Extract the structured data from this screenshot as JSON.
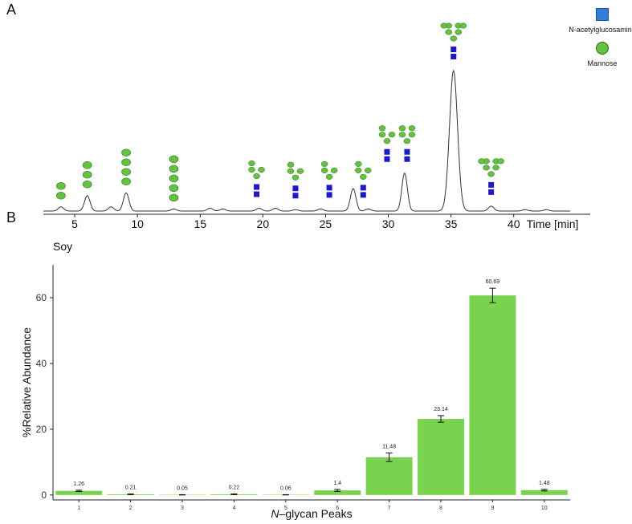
{
  "panels": {
    "a": "A",
    "b": "B"
  },
  "legend": {
    "items": [
      {
        "label": "N-acetylglucosamine",
        "shape": "square",
        "color": "#2f7fd8"
      },
      {
        "label": "Mannose",
        "shape": "circle",
        "color": "#63c33f"
      }
    ]
  },
  "chart_data": [
    {
      "type": "line",
      "xlabel": "Time [min]",
      "xticks": [
        5,
        10,
        15,
        20,
        25,
        30,
        35,
        40
      ],
      "xlim": [
        2.5,
        44.5
      ],
      "peaks": [
        {
          "time": 3.9,
          "height": 0.03
        },
        {
          "time": 6.0,
          "height": 0.11
        },
        {
          "time": 7.9,
          "height": 0.03
        },
        {
          "time": 9.1,
          "height": 0.13
        },
        {
          "time": 12.9,
          "height": 0.015
        },
        {
          "time": 15.8,
          "height": 0.02
        },
        {
          "time": 16.8,
          "height": 0.015
        },
        {
          "time": 19.7,
          "height": 0.02
        },
        {
          "time": 21.0,
          "height": 0.02
        },
        {
          "time": 22.6,
          "height": 0.01
        },
        {
          "time": 24.6,
          "height": 0.015
        },
        {
          "time": 27.2,
          "height": 0.16
        },
        {
          "time": 28.4,
          "height": 0.015
        },
        {
          "time": 31.3,
          "height": 0.27
        },
        {
          "time": 35.2,
          "height": 1.0
        },
        {
          "time": 38.2,
          "height": 0.035
        },
        {
          "time": 40.9,
          "height": 0.01
        },
        {
          "time": 42.6,
          "height": 0.01
        }
      ],
      "glycans": [
        {
          "time": 3.9,
          "mannose_chain": 2,
          "glcnac": 0
        },
        {
          "time": 6.0,
          "mannose_chain": 3,
          "glcnac": 0
        },
        {
          "time": 9.1,
          "mannose_chain": 4,
          "glcnac": 0
        },
        {
          "time": 12.9,
          "mannose_chain": 5,
          "glcnac": 0
        },
        {
          "time": 19.5,
          "mannose_branched": 4,
          "glcnac": 2
        },
        {
          "time": 22.6,
          "mannose_branched": 4,
          "glcnac": 2
        },
        {
          "time": 25.3,
          "mannose_branched": 4,
          "glcnac": 2
        },
        {
          "time": 28.0,
          "mannose_branched": 4,
          "glcnac": 2
        },
        {
          "time": 29.9,
          "mannose_branched": 4,
          "glcnac": 2
        },
        {
          "time": 31.5,
          "mannose_branched": 5,
          "glcnac": 2
        },
        {
          "time": 35.2,
          "mannose_branched": 7,
          "glcnac": 2
        },
        {
          "time": 38.2,
          "mannose_branched": 7,
          "glcnac": 2
        }
      ]
    },
    {
      "type": "bar",
      "title": "Soy",
      "xlabel_italic": "N",
      "xlabel_rest": "–glycan Peaks",
      "ylabel": "%Relative Abundance",
      "categories": [
        "1",
        "2",
        "3",
        "4",
        "5",
        "6",
        "7",
        "8",
        "9",
        "10"
      ],
      "values": [
        1.26,
        0.21,
        0.05,
        0.22,
        0.06,
        1.4,
        11.48,
        23.14,
        60.69,
        1.48
      ],
      "value_labels": [
        "1.26",
        "0.21",
        "0.05",
        "0.22",
        "0.06",
        "1.4",
        "11.48",
        "23.14",
        "60.69",
        "1.48"
      ],
      "errors": [
        0.2,
        0.1,
        0.05,
        0.1,
        0.05,
        0.3,
        1.3,
        1.0,
        2.2,
        0.25
      ],
      "yticks": [
        0,
        20,
        40,
        60
      ],
      "ylim": [
        -1.5,
        70
      ],
      "bar_color": "#7ad34e"
    }
  ]
}
